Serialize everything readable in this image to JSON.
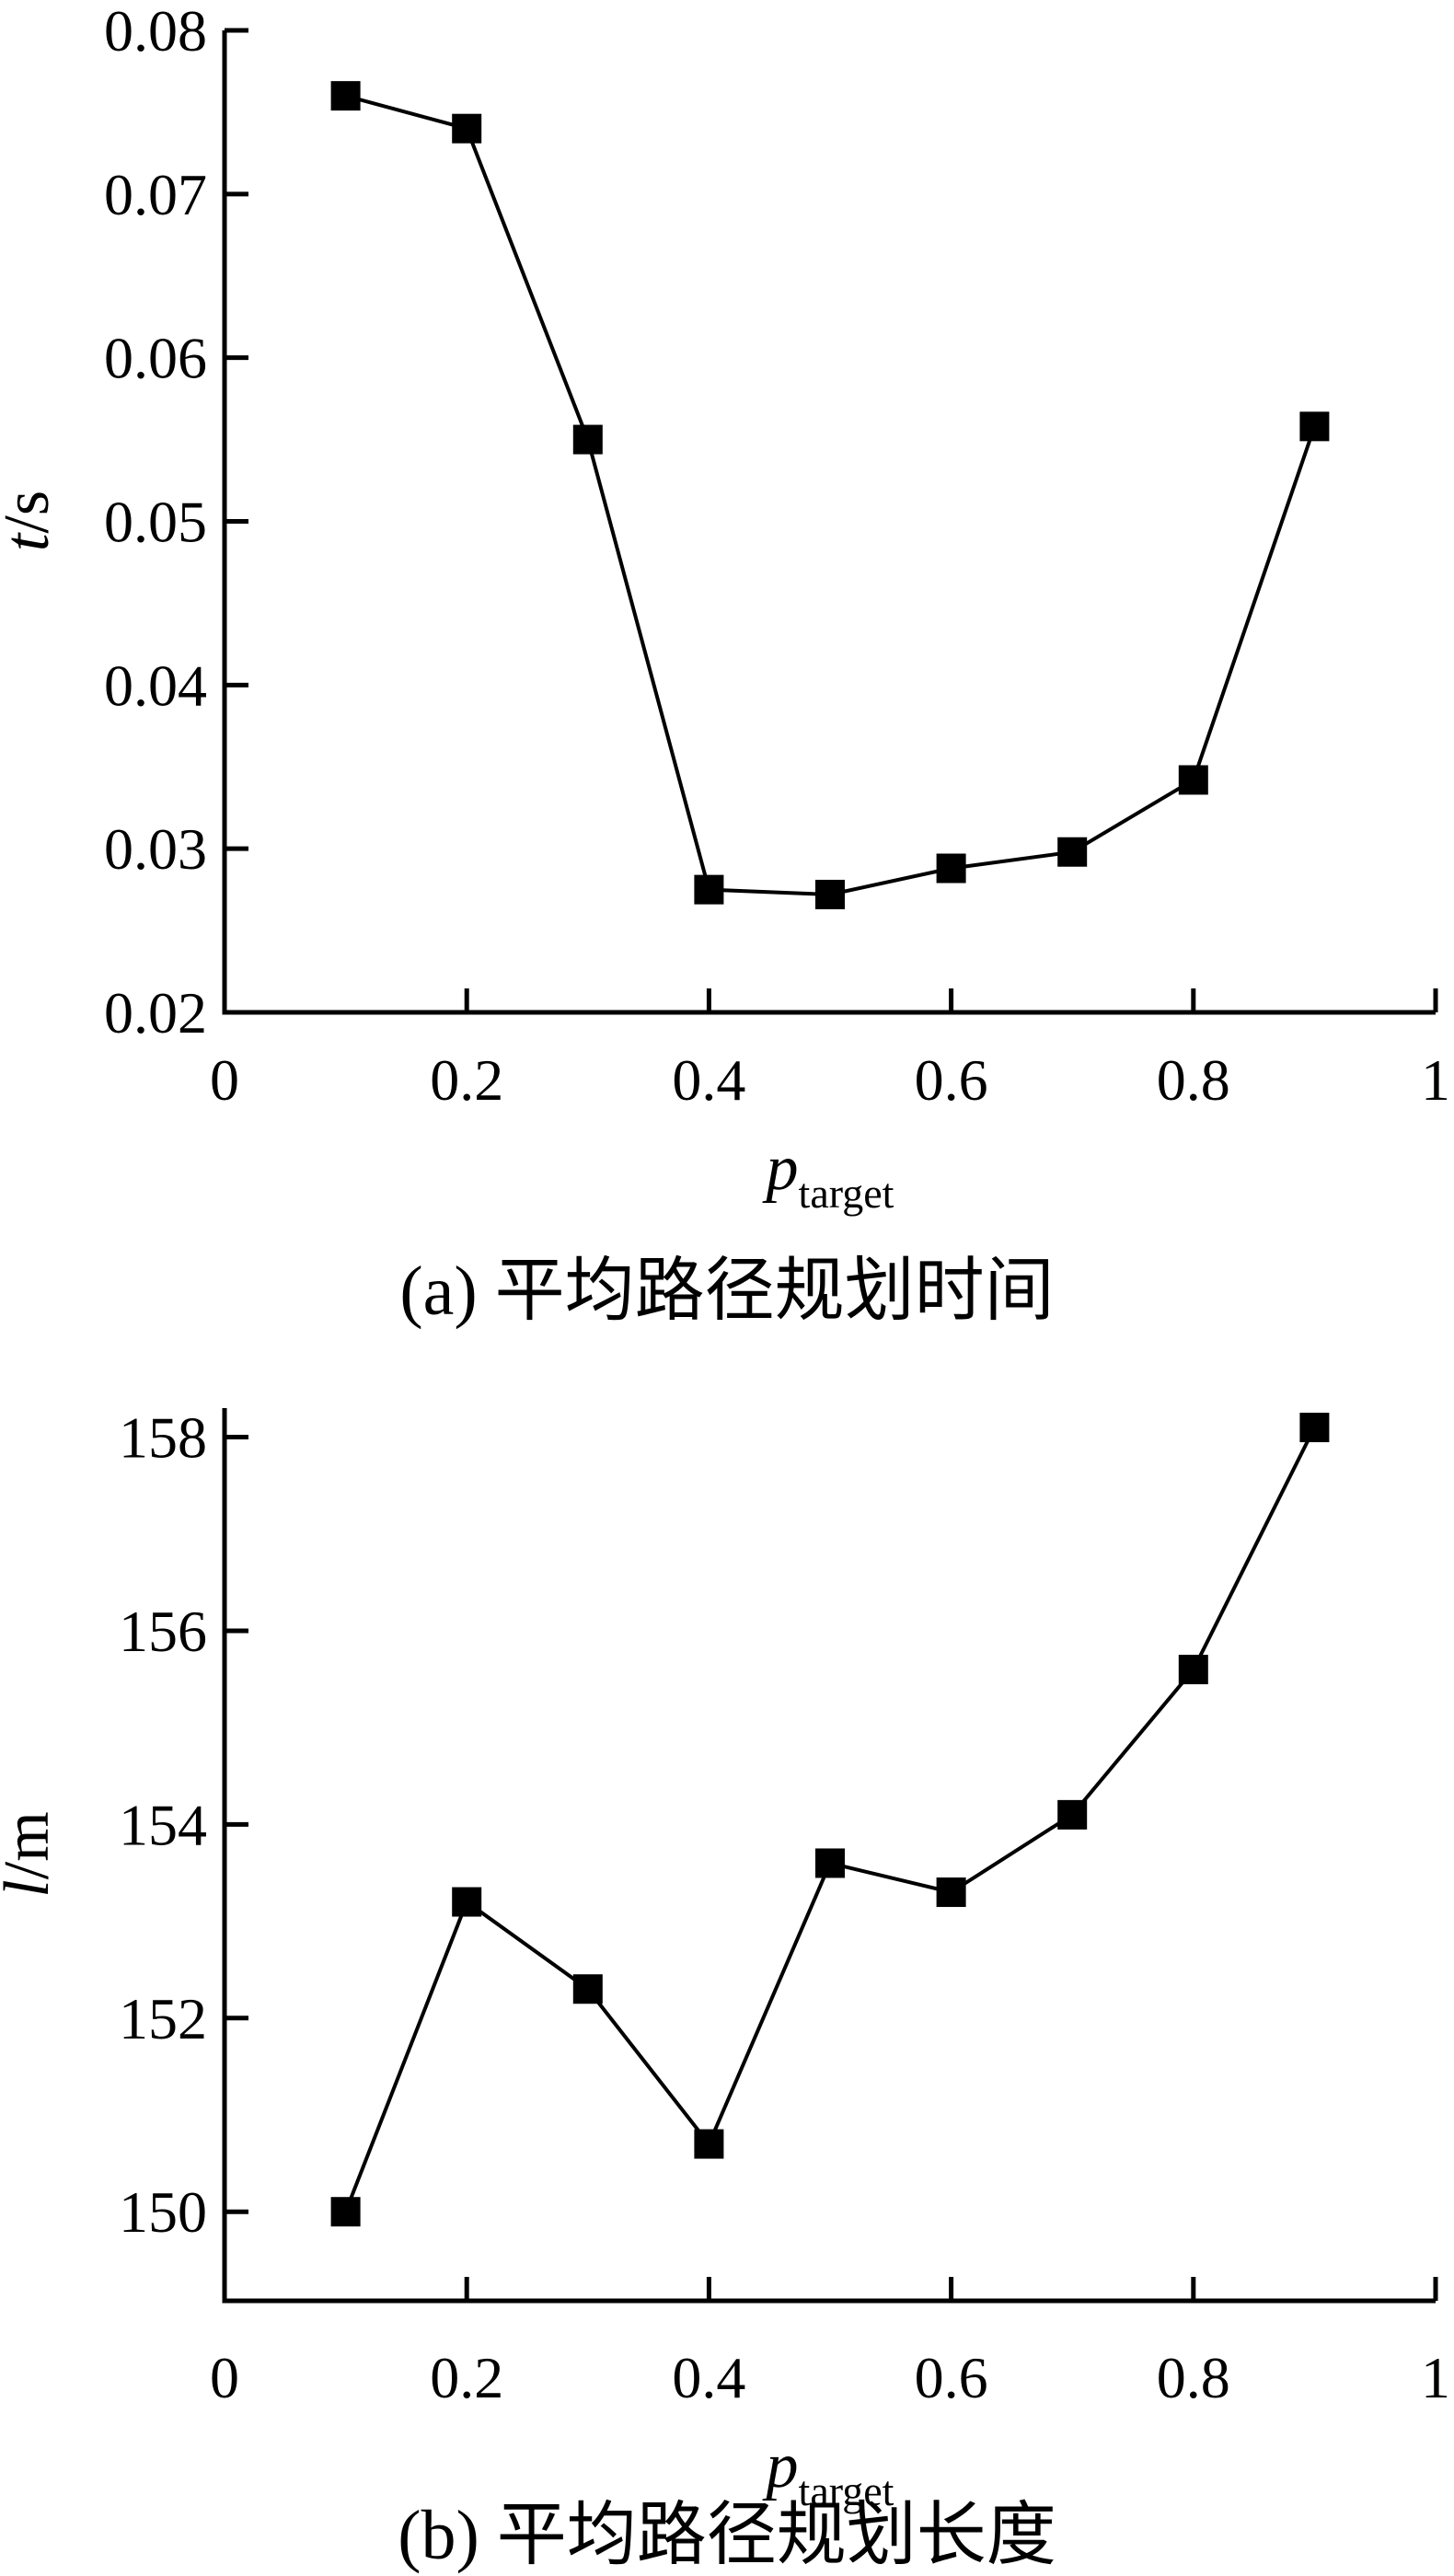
{
  "page": {
    "background_color": "#ffffff",
    "ink_color": "#000000"
  },
  "chart_data": [
    {
      "type": "line",
      "title": "(a) 平均路径规划时间",
      "xlabel_variable": "p",
      "xlabel_subscript": "target",
      "ylabel_variable": "t",
      "ylabel_rest": "/s",
      "x": [
        0.1,
        0.2,
        0.3,
        0.4,
        0.5,
        0.6,
        0.7,
        0.8,
        0.9
      ],
      "values": [
        0.076,
        0.074,
        0.055,
        0.0275,
        0.0272,
        0.0288,
        0.0298,
        0.0342,
        0.0558
      ],
      "xlim": [
        0,
        1
      ],
      "ylim": [
        0.02,
        0.08
      ],
      "x_ticks": [
        0,
        0.2,
        0.4,
        0.6,
        0.8,
        1
      ],
      "x_tick_labels": [
        "0",
        "0.2",
        "0.4",
        "0.6",
        "0.8",
        "1"
      ],
      "y_ticks": [
        0.08,
        0.07,
        0.06,
        0.05,
        0.04,
        0.03,
        0.02
      ],
      "y_tick_labels": [
        "0.08",
        "0.07",
        "0.06",
        "0.05",
        "0.04",
        "0.03",
        "0.02"
      ],
      "marker": "filled-square",
      "line_color": "#000000",
      "marker_color": "#000000",
      "grid": false,
      "legend": null
    },
    {
      "type": "line",
      "title": "(b) 平均路径规划长度",
      "xlabel_variable": "p",
      "xlabel_subscript": "target",
      "ylabel_variable": "l",
      "ylabel_rest": "/m",
      "x": [
        0.1,
        0.2,
        0.3,
        0.4,
        0.5,
        0.6,
        0.7,
        0.8,
        0.9
      ],
      "values": [
        150.0,
        153.2,
        152.3,
        150.7,
        153.6,
        153.3,
        154.1,
        155.6,
        158.1
      ],
      "xlim": [
        0,
        1
      ],
      "ylim": [
        149.08,
        158.3
      ],
      "x_ticks": [
        0,
        0.2,
        0.4,
        0.6,
        0.8,
        1
      ],
      "x_tick_labels": [
        "0",
        "0.2",
        "0.4",
        "0.6",
        "0.8",
        "1"
      ],
      "y_ticks": [
        158,
        156,
        154,
        152,
        150
      ],
      "y_tick_labels": [
        "158",
        "156",
        "154",
        "152",
        "150"
      ],
      "marker": "filled-square",
      "line_color": "#000000",
      "marker_color": "#000000",
      "grid": false,
      "legend": null
    }
  ]
}
